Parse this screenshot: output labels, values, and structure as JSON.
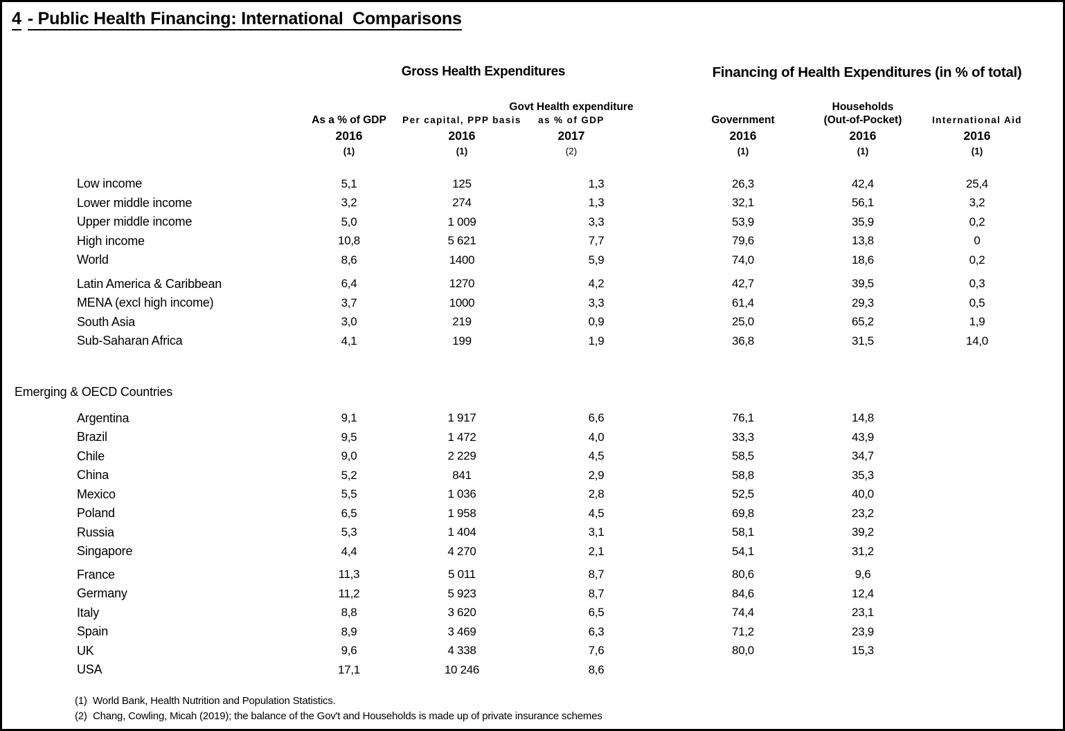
{
  "title": {
    "number": "4",
    "rest": "- Public Health Financing: International  Comparisons"
  },
  "table": {
    "group_headers": [
      {
        "label": "Gross Health Expenditures"
      },
      {
        "label": "Financing of Health Expenditures (in % of total)"
      }
    ],
    "columns": [
      {
        "name": "As a % of GDP",
        "name2": "",
        "year": "2016",
        "ref": "(1)"
      },
      {
        "name": "Per capital, PPP basis",
        "name2": "",
        "year": "2016",
        "ref": "(1)"
      },
      {
        "name": "Govt Health expenditure",
        "name2": "as %  of GDP",
        "year": "2017",
        "ref": "(2)"
      },
      {
        "name": "Government",
        "name2": "",
        "year": "2016",
        "ref": "(1)"
      },
      {
        "name": "Households",
        "name2": "(Out-of-Pocket)",
        "year": "2016",
        "ref": "(1)"
      },
      {
        "name": "International Aid",
        "name2": "",
        "year": "2016",
        "ref": "(1)"
      }
    ],
    "sections": [
      {
        "title": "",
        "clusters": [
          [
            {
              "label": "Low income",
              "values": [
                "5,1",
                "125",
                "1,3",
                "26,3",
                "42,4",
                "25,4"
              ]
            },
            {
              "label": "Lower middle income",
              "values": [
                "3,2",
                "274",
                "1,3",
                "32,1",
                "56,1",
                "3,2"
              ]
            },
            {
              "label": "Upper middle income",
              "values": [
                "5,0",
                "1 009",
                "3,3",
                "53,9",
                "35,9",
                "0,2"
              ]
            },
            {
              "label": "High income",
              "values": [
                "10,8",
                "5 621",
                "7,7",
                "79,6",
                "13,8",
                "0"
              ]
            },
            {
              "label": "World",
              "values": [
                "8,6",
                "1400",
                "5,9",
                "74,0",
                "18,6",
                "0,2"
              ]
            }
          ],
          [
            {
              "label": "Latin America & Caribbean",
              "values": [
                "6,4",
                "1270",
                "4,2",
                "42,7",
                "39,5",
                "0,3"
              ]
            },
            {
              "label": "MENA (excl high income)",
              "values": [
                "3,7",
                "1000",
                "3,3",
                "61,4",
                "29,3",
                "0,5"
              ]
            },
            {
              "label": "South Asia",
              "values": [
                "3,0",
                "219",
                "0,9",
                "25,0",
                "65,2",
                "1,9"
              ]
            },
            {
              "label": "Sub-Saharan Africa",
              "values": [
                "4,1",
                "199",
                "1,9",
                "36,8",
                "31,5",
                "14,0"
              ]
            }
          ]
        ]
      },
      {
        "title": "Emerging & OECD Countries",
        "clusters": [
          [
            {
              "label": "Argentina",
              "values": [
                "9,1",
                "1 917",
                "6,6",
                "76,1",
                "14,8",
                ""
              ]
            },
            {
              "label": "Brazil",
              "values": [
                "9,5",
                "1 472",
                "4,0",
                "33,3",
                "43,9",
                ""
              ]
            },
            {
              "label": "Chile",
              "values": [
                "9,0",
                "2 229",
                "4,5",
                "58,5",
                "34,7",
                ""
              ]
            },
            {
              "label": "China",
              "values": [
                "5,2",
                "841",
                "2,9",
                "58,8",
                "35,3",
                ""
              ]
            },
            {
              "label": "Mexico",
              "values": [
                "5,5",
                "1 036",
                "2,8",
                "52,5",
                "40,0",
                ""
              ]
            },
            {
              "label": "Poland",
              "values": [
                "6,5",
                "1 958",
                "4,5",
                "69,8",
                "23,2",
                ""
              ]
            },
            {
              "label": "Russia",
              "values": [
                "5,3",
                "1 404",
                "3,1",
                "58,1",
                "39,2",
                ""
              ]
            },
            {
              "label": "Singapore",
              "values": [
                "4,4",
                "4 270",
                "2,1",
                "54,1",
                "31,2",
                ""
              ]
            }
          ],
          [
            {
              "label": "France",
              "values": [
                "11,3",
                "5 011",
                "8,7",
                "80,6",
                "9,6",
                ""
              ]
            },
            {
              "label": "Germany",
              "values": [
                "11,2",
                "5 923",
                "8,7",
                "84,6",
                "12,4",
                ""
              ]
            },
            {
              "label": "Italy",
              "values": [
                "8,8",
                "3 620",
                "6,5",
                "74,4",
                "23,1",
                ""
              ]
            },
            {
              "label": "Spain",
              "values": [
                "8,9",
                "3 469",
                "6,3",
                "71,2",
                "23,9",
                ""
              ]
            },
            {
              "label": "UK",
              "values": [
                "9,6",
                "4 338",
                "7,6",
                "80,0",
                "15,3",
                ""
              ]
            },
            {
              "label": "USA",
              "values": [
                "17,1",
                "10 246",
                "8,6",
                "",
                "",
                ""
              ]
            }
          ]
        ]
      }
    ]
  },
  "footnotes": [
    {
      "ref": "(1)",
      "text": "World Bank, Health Nutrition and Population Statistics."
    },
    {
      "ref": "(2)",
      "text": "Chang, Cowling, Micah (2019); the balance of the Gov't and Households is made up of private insurance schemes"
    }
  ]
}
